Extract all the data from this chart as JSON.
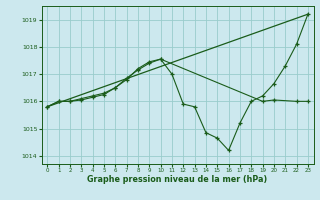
{
  "title": "Graphe pression niveau de la mer (hPa)",
  "bg_color": "#cce8ee",
  "grid_color": "#99cccc",
  "line_color": "#1a5c1a",
  "xlim": [
    -0.5,
    23.5
  ],
  "ylim": [
    1013.7,
    1019.5
  ],
  "yticks": [
    1014,
    1015,
    1016,
    1017,
    1018,
    1019
  ],
  "xticks": [
    0,
    1,
    2,
    3,
    4,
    5,
    6,
    7,
    8,
    9,
    10,
    11,
    12,
    13,
    14,
    15,
    16,
    17,
    18,
    19,
    20,
    21,
    22,
    23
  ],
  "series1_x": [
    0,
    1,
    2,
    3,
    4,
    5,
    6,
    7,
    8,
    9,
    10,
    11,
    12,
    13,
    14,
    15,
    16,
    17,
    18,
    19,
    20,
    21,
    22,
    23
  ],
  "series1_y": [
    1015.8,
    1016.0,
    1016.0,
    1016.1,
    1016.2,
    1016.3,
    1016.5,
    1016.8,
    1017.2,
    1017.45,
    1017.55,
    1017.0,
    1015.9,
    1015.8,
    1014.85,
    1014.65,
    1014.2,
    1015.2,
    1016.0,
    1016.2,
    1016.65,
    1017.3,
    1018.1,
    1019.2
  ],
  "series2_x": [
    0,
    1,
    2,
    3,
    4,
    5,
    6,
    7,
    8,
    9,
    10,
    19,
    20,
    22,
    23
  ],
  "series2_y": [
    1015.8,
    1016.0,
    1016.0,
    1016.05,
    1016.15,
    1016.25,
    1016.5,
    1016.85,
    1017.15,
    1017.4,
    1017.55,
    1016.0,
    1016.05,
    1016.0,
    1016.0
  ],
  "series3_x": [
    0,
    23
  ],
  "series3_y": [
    1015.8,
    1019.2
  ]
}
